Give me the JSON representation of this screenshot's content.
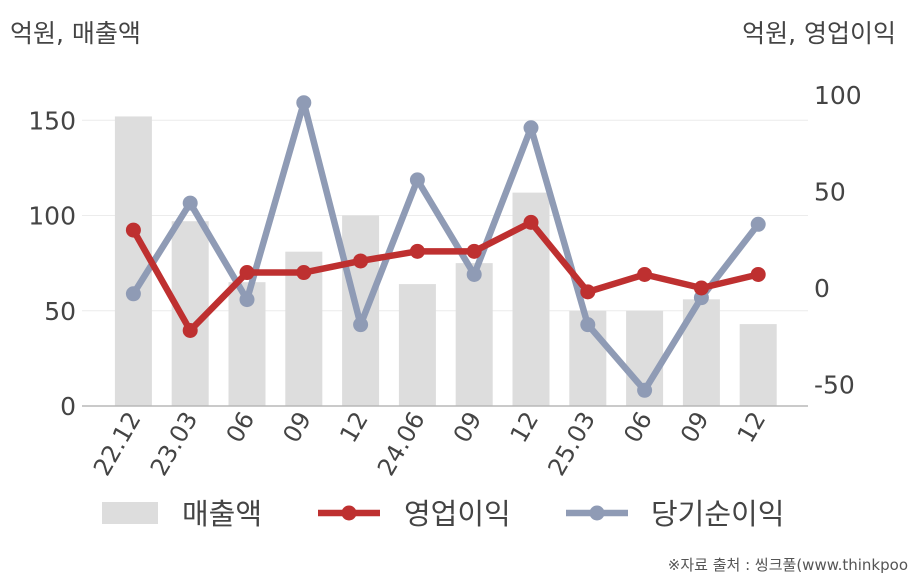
{
  "labels": {
    "left_unit": "억원, 매출액",
    "right_unit": "억원, 영업이익",
    "source": "※자료 출처 : 씽크풀(www.thinkpoo"
  },
  "chart_data": {
    "type": "bar",
    "categories": [
      "22.12",
      "23.03",
      "06",
      "09",
      "12",
      "24.06",
      "09",
      "12",
      "25.03",
      "06",
      "09",
      "12"
    ],
    "y_left": {
      "label": "억원, 매출액",
      "ylim": [
        0,
        170
      ],
      "ticks": [
        0,
        50,
        100,
        150
      ]
    },
    "y_right": {
      "label": "억원, 영업이익",
      "ylim": [
        -60,
        100
      ],
      "ticks": [
        -50,
        0,
        50,
        100
      ]
    },
    "grid": true,
    "legend_position": "bottom",
    "series": [
      {
        "name": "매출액",
        "type": "bar",
        "axis": "left",
        "color": "#dddddd",
        "values": [
          152,
          97,
          65,
          81,
          100,
          64,
          75,
          112,
          50,
          50,
          56,
          43
        ]
      },
      {
        "name": "영업이익",
        "type": "line",
        "axis": "right",
        "color": "#be3030",
        "values": [
          30,
          -22,
          8,
          8,
          14,
          19,
          19,
          34,
          -2,
          7,
          0,
          7
        ]
      },
      {
        "name": "당기순이익",
        "type": "line",
        "axis": "right",
        "color": "#8f9bb5",
        "values": [
          -3,
          44,
          -6,
          96,
          -19,
          56,
          7,
          83,
          -19,
          -53,
          -5,
          33
        ]
      }
    ]
  }
}
